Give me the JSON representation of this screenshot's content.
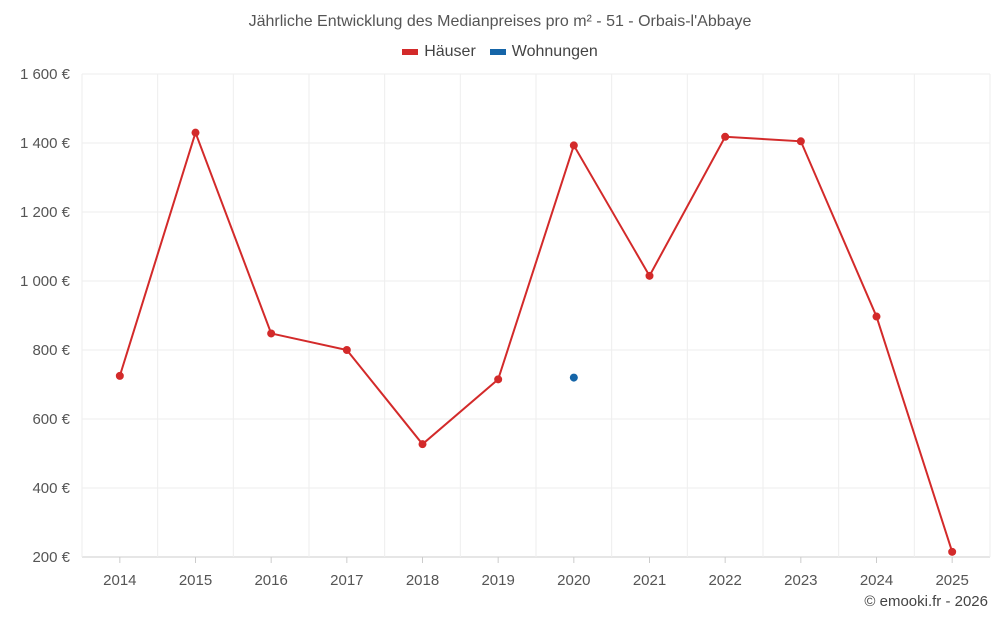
{
  "chart_data": {
    "type": "line",
    "title": "Jährliche Entwicklung des Medianpreises pro m² - 51 - Orbais-l'Abbaye",
    "categories": [
      "2014",
      "2015",
      "2016",
      "2017",
      "2018",
      "2019",
      "2020",
      "2021",
      "2022",
      "2023",
      "2024",
      "2025"
    ],
    "series": [
      {
        "name": "Häuser",
        "color": "#d32a2a",
        "values": [
          725,
          1430,
          848,
          800,
          527,
          715,
          1393,
          1015,
          1418,
          1405,
          897,
          215
        ]
      },
      {
        "name": "Wohnungen",
        "color": "#1565a8",
        "values": [
          null,
          null,
          null,
          null,
          null,
          null,
          720,
          null,
          null,
          null,
          null,
          null
        ]
      }
    ],
    "ylim": [
      200,
      1600
    ],
    "yticks": [
      200,
      400,
      600,
      800,
      1000,
      1200,
      1400,
      1600
    ],
    "ytick_labels": [
      "200 €",
      "400 €",
      "600 €",
      "800 €",
      "1 000 €",
      "1 200 €",
      "1 400 €",
      "1 600 €"
    ],
    "grid": true,
    "legend_position": "top-center"
  },
  "credit": "© emooki.fr - 2026"
}
